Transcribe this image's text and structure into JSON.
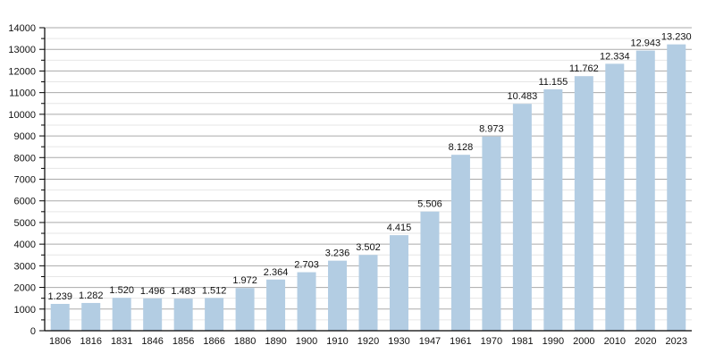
{
  "chart_data": {
    "type": "bar",
    "title": "",
    "xlabel": "",
    "ylabel": "",
    "ylim": [
      0,
      14000
    ],
    "yticks": [
      0,
      1000,
      2000,
      3000,
      4000,
      5000,
      6000,
      7000,
      8000,
      9000,
      10000,
      11000,
      12000,
      13000,
      14000
    ],
    "grid": true,
    "bar_color": "#b3cde3",
    "categories": [
      "1806",
      "1816",
      "1831",
      "1846",
      "1856",
      "1866",
      "1880",
      "1890",
      "1900",
      "1910",
      "1920",
      "1930",
      "1947",
      "1961",
      "1970",
      "1981",
      "1990",
      "2000",
      "2010",
      "2020",
      "2023"
    ],
    "values": [
      1239,
      1282,
      1520,
      1496,
      1483,
      1512,
      1972,
      2364,
      2703,
      3236,
      3502,
      4415,
      5506,
      8128,
      8973,
      10483,
      11155,
      11762,
      12334,
      12943,
      13230
    ],
    "labels": [
      "1.239",
      "1.282",
      "1.520",
      "1.496",
      "1.483",
      "1.512",
      "1.972",
      "2.364",
      "2.703",
      "3.236",
      "3.502",
      "4.415",
      "5.506",
      "8.128",
      "8.973",
      "10.483",
      "11.155",
      "11.762",
      "12.334",
      "12.943",
      "13.230"
    ]
  }
}
